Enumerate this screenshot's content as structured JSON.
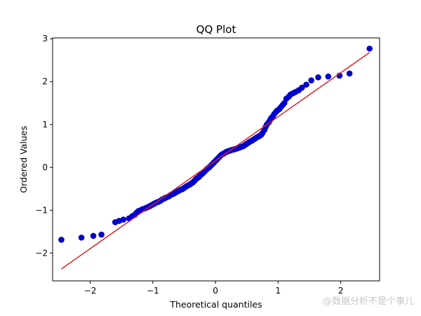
{
  "chart_data": {
    "type": "scatter",
    "title": "QQ Plot",
    "xlabel": "Theoretical quantiles",
    "ylabel": "Ordered Values",
    "xlim": [
      -2.6,
      2.62
    ],
    "ylim": [
      -2.65,
      3.02
    ],
    "xticks": [
      -2,
      -1,
      0,
      1,
      2
    ],
    "xtick_labels": [
      "−2",
      "−1",
      "0",
      "1",
      "2"
    ],
    "yticks": [
      -2,
      -1,
      0,
      1,
      2,
      3
    ],
    "ytick_labels": [
      "−2",
      "−1",
      "0",
      "1",
      "2",
      "3"
    ],
    "grid": false,
    "colors": {
      "points": "#0000cc",
      "line": "#e02020"
    },
    "points": {
      "x": [
        -2.46,
        -2.14,
        -1.95,
        -1.82,
        -1.6,
        -1.54,
        -1.47,
        -1.38,
        -1.33,
        -1.29,
        -1.26,
        -1.23,
        -1.19,
        -1.17,
        -1.13,
        -1.1,
        -1.07,
        -1.04,
        -1.02,
        -0.99,
        -0.97,
        -0.94,
        -0.92,
        -0.89,
        -0.87,
        -0.85,
        -0.82,
        -0.8,
        -0.78,
        -0.75,
        -0.73,
        -0.71,
        -0.69,
        -0.66,
        -0.64,
        -0.62,
        -0.6,
        -0.58,
        -0.55,
        -0.53,
        -0.51,
        -0.49,
        -0.47,
        -0.45,
        -0.42,
        -0.4,
        -0.38,
        -0.36,
        -0.34,
        -0.32,
        -0.3,
        -0.27,
        -0.25,
        -0.23,
        -0.21,
        -0.19,
        -0.17,
        -0.15,
        -0.13,
        -0.1,
        -0.08,
        -0.06,
        -0.04,
        -0.02,
        0.0,
        0.02,
        0.04,
        0.06,
        0.08,
        0.1,
        0.13,
        0.15,
        0.17,
        0.19,
        0.21,
        0.23,
        0.25,
        0.27,
        0.3,
        0.32,
        0.34,
        0.36,
        0.38,
        0.4,
        0.42,
        0.45,
        0.47,
        0.49,
        0.51,
        0.53,
        0.55,
        0.58,
        0.6,
        0.62,
        0.64,
        0.66,
        0.69,
        0.71,
        0.73,
        0.75,
        0.78,
        0.8,
        0.82,
        0.85,
        0.87,
        0.89,
        0.92,
        0.94,
        0.97,
        0.99,
        1.02,
        1.04,
        1.07,
        1.1,
        1.13,
        1.17,
        1.2,
        1.24,
        1.28,
        1.33,
        1.38,
        1.45,
        1.53,
        1.64,
        1.8,
        1.98,
        2.14,
        2.46
      ],
      "y": [
        -1.69,
        -1.64,
        -1.6,
        -1.57,
        -1.28,
        -1.25,
        -1.22,
        -1.19,
        -1.14,
        -1.11,
        -1.06,
        -1.02,
        -1.0,
        -0.98,
        -0.96,
        -0.94,
        -0.92,
        -0.9,
        -0.88,
        -0.86,
        -0.84,
        -0.82,
        -0.81,
        -0.79,
        -0.77,
        -0.75,
        -0.73,
        -0.71,
        -0.7,
        -0.68,
        -0.66,
        -0.64,
        -0.63,
        -0.61,
        -0.59,
        -0.57,
        -0.56,
        -0.54,
        -0.52,
        -0.51,
        -0.49,
        -0.47,
        -0.45,
        -0.43,
        -0.41,
        -0.39,
        -0.37,
        -0.35,
        -0.32,
        -0.29,
        -0.26,
        -0.23,
        -0.2,
        -0.17,
        -0.15,
        -0.12,
        -0.09,
        -0.06,
        -0.03,
        0.0,
        0.03,
        0.06,
        0.09,
        0.12,
        0.15,
        0.18,
        0.21,
        0.24,
        0.27,
        0.3,
        0.32,
        0.34,
        0.36,
        0.37,
        0.38,
        0.39,
        0.4,
        0.41,
        0.42,
        0.43,
        0.44,
        0.45,
        0.46,
        0.47,
        0.48,
        0.5,
        0.52,
        0.54,
        0.56,
        0.58,
        0.6,
        0.62,
        0.64,
        0.66,
        0.68,
        0.7,
        0.72,
        0.74,
        0.76,
        0.8,
        0.87,
        0.94,
        1.0,
        1.05,
        1.1,
        1.15,
        1.2,
        1.25,
        1.3,
        1.33,
        1.36,
        1.4,
        1.45,
        1.5,
        1.6,
        1.65,
        1.7,
        1.73,
        1.76,
        1.8,
        1.86,
        1.93,
        2.03,
        2.1,
        2.12,
        2.14,
        2.19,
        2.77
      ]
    },
    "fit_line": {
      "x": [
        -2.46,
        2.46
      ],
      "y": [
        -2.37,
        2.68
      ]
    }
  },
  "watermark": "@数据分析不是个事儿"
}
